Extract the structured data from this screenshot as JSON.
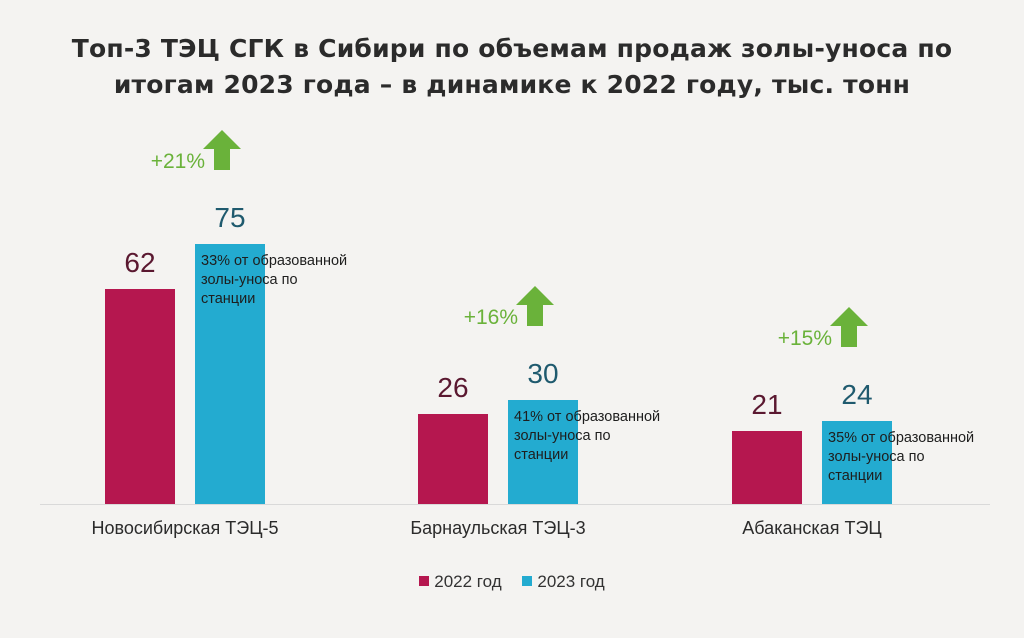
{
  "chart_data": {
    "type": "bar",
    "title_lines": [
      "Топ-3 ТЭЦ СГК в Сибири по объемам продаж золы-уноса по",
      "итогам 2023 года – в динамике к 2022 году, тыс. тонн"
    ],
    "categories": [
      "Новосибирская ТЭЦ-5",
      "Барнаульская ТЭЦ-3",
      "Абаканская ТЭЦ"
    ],
    "series": [
      {
        "name": "2022 год",
        "values": [
          62,
          26,
          21
        ],
        "color": "#b5174f"
      },
      {
        "name": "2023 год",
        "values": [
          75,
          30,
          24
        ],
        "color": "#23abd0"
      }
    ],
    "growth_labels": [
      "+21%",
      "+16%",
      "+15%"
    ],
    "annotations": [
      "33% от образованной золы-уноса по станции",
      "41% от образованной золы-уноса по станции",
      "35% от образованной золы-уноса по станции"
    ],
    "ylim": [
      0,
      80
    ],
    "grid": false,
    "legend_position": "bottom-center",
    "growth_color": "#6ab23a",
    "label_color_2022": "#5a1830",
    "label_color_2023": "#1f5a6e"
  }
}
